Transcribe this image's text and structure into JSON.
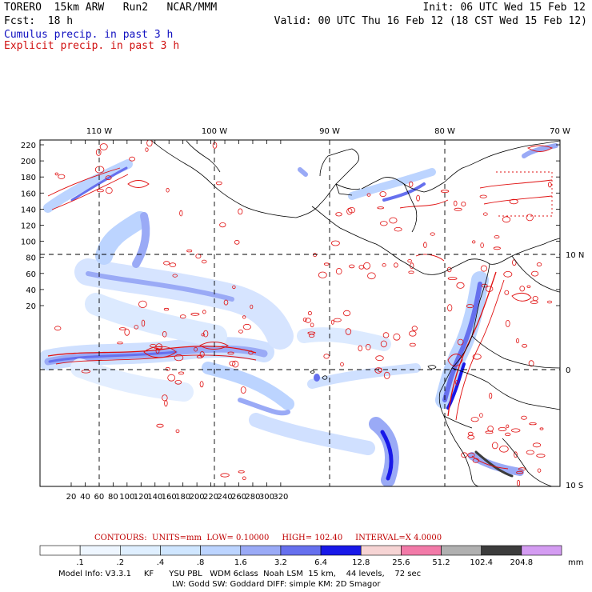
{
  "header": {
    "model": "TORERO",
    "resolution": "15km ARW",
    "run": "Run2",
    "org": "NCAR/MMM",
    "init_label": "Init:",
    "init_value": "06 UTC Wed 15 Feb 12",
    "fcst_label": "Fcst:",
    "fcst_value": "18 h",
    "valid_label": "Valid:",
    "valid_value": "00 UTC Thu 16 Feb 12 (18 CST Wed 15 Feb 12)",
    "field_blue": "Cumulus precip. in past 3 h",
    "field_red": "Explicit precip. in past 3 h"
  },
  "map": {
    "top_lon_labels": [
      "110 W",
      "100 W",
      "90 W",
      "80 W",
      "70 W"
    ],
    "left_y_labels": [
      "220",
      "200",
      "180",
      "160",
      "140",
      "120",
      "100",
      "80",
      "60",
      "40",
      "20"
    ],
    "bottom_x_labels": [
      "20",
      "40",
      "60",
      "80",
      "100",
      "120",
      "140",
      "160",
      "180",
      "200",
      "220",
      "240",
      "260",
      "280",
      "300",
      "320"
    ],
    "right_lat_labels": [
      "10 N",
      "0",
      "10 S"
    ]
  },
  "contours": {
    "label": "CONTOURS:",
    "units": "UNITS=mm",
    "low": "LOW= 0.10000",
    "high": "HIGH= 102.40",
    "interval": "INTERVAL=X 4.0000"
  },
  "colorbar": {
    "labels": [
      ".1",
      ".2",
      ".4",
      ".8",
      "1.6",
      "3.2",
      "6.4",
      "12.8",
      "25.6",
      "51.2",
      "102.4",
      "204.8"
    ],
    "unit": "mm",
    "colors": [
      "#ffffff",
      "#eef6ff",
      "#dfefff",
      "#cfe6ff",
      "#bcd4ff",
      "#9aaaf6",
      "#6670ee",
      "#1818e8",
      "#f6d4d4",
      "#f27aa8",
      "#b0b0b0",
      "#3c3c3c",
      "#d49cf2"
    ]
  },
  "footer": {
    "line1": "Model Info: V3.3.1     KF      YSU PBL   WDM 6class  Noah LSM  15 km,    44 levels,    72 sec",
    "line2": "LW: Godd SW: Goddard DIFF: simple KM: 2D Smagor"
  }
}
